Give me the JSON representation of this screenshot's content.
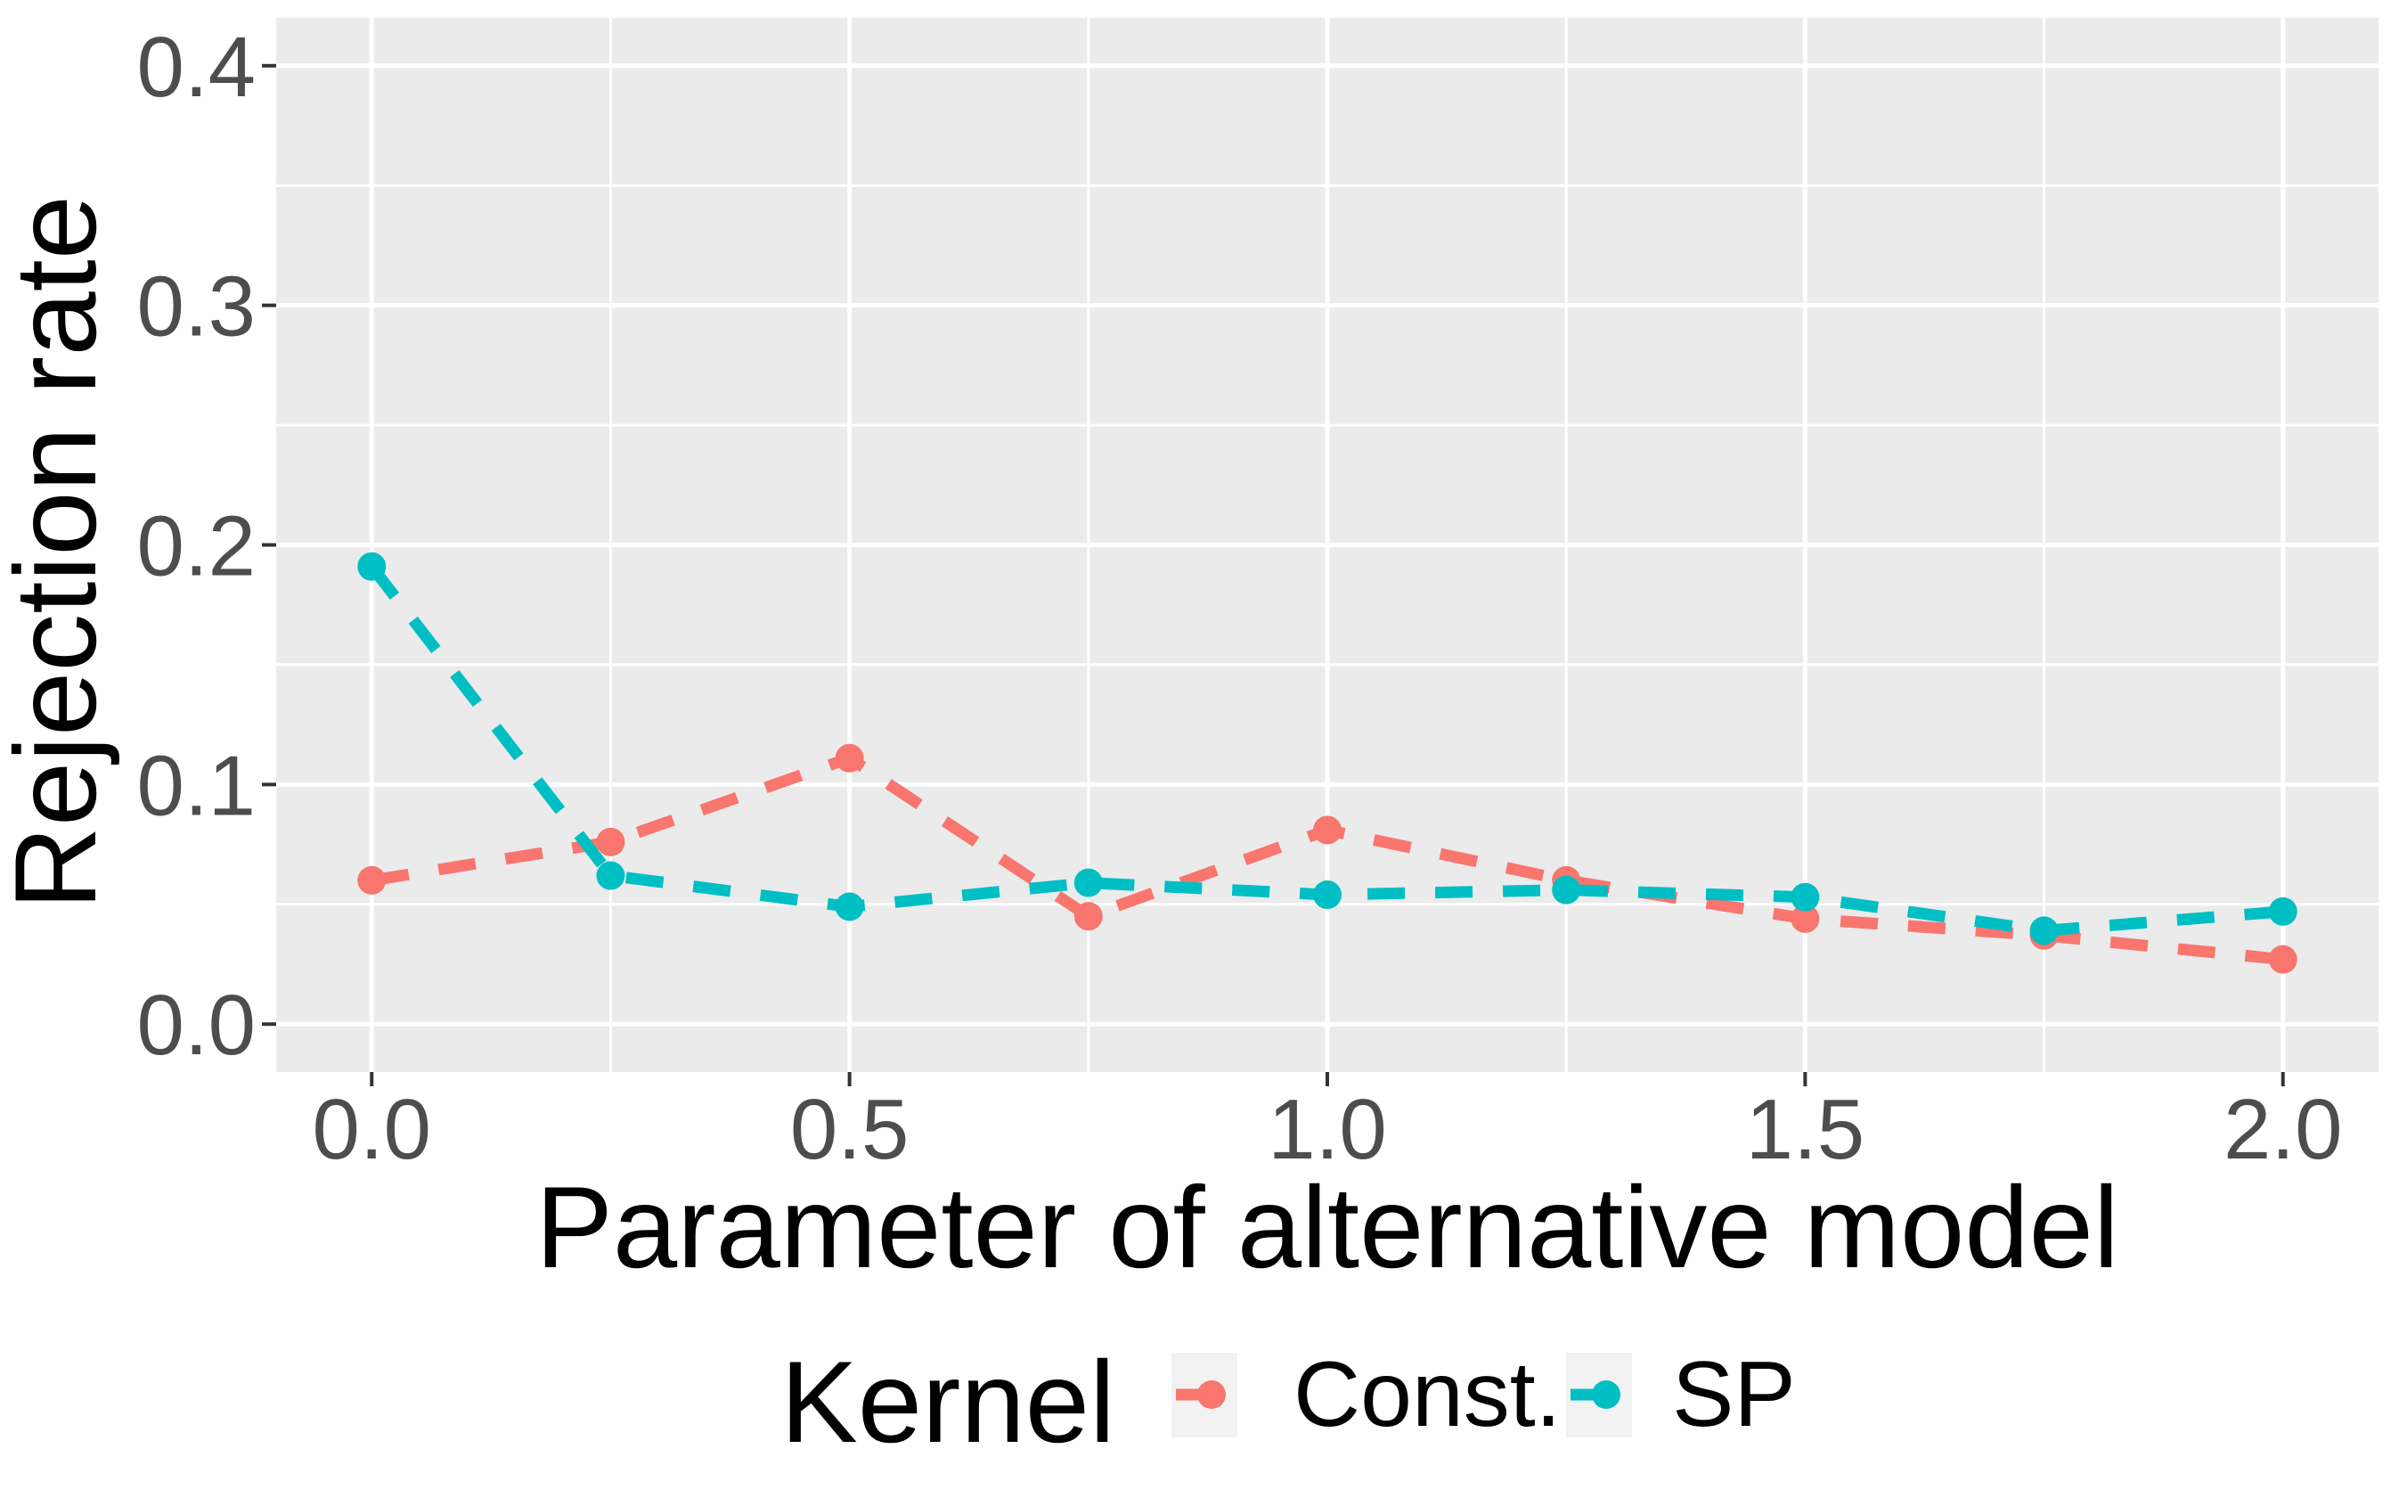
{
  "chart_data": {
    "type": "line",
    "title": "",
    "xlabel": "Parameter of alternative model",
    "ylabel": "Rejection rate",
    "x": [
      0.0,
      0.25,
      0.5,
      0.75,
      1.0,
      1.25,
      1.5,
      1.75,
      2.0
    ],
    "series": [
      {
        "name": "Const.",
        "color": "#F8766D",
        "values": [
          0.06,
          0.076,
          0.111,
          0.045,
          0.081,
          0.06,
          0.044,
          0.037,
          0.027
        ]
      },
      {
        "name": "SP",
        "color": "#00BFC4",
        "values": [
          0.191,
          0.062,
          0.049,
          0.059,
          0.054,
          0.056,
          0.053,
          0.039,
          0.047
        ]
      }
    ],
    "x_ticks": [
      "0.0",
      "0.5",
      "1.0",
      "1.5",
      "2.0"
    ],
    "x_tick_values": [
      0.0,
      0.5,
      1.0,
      1.5,
      2.0
    ],
    "x_minor_values": [
      0.25,
      0.75,
      1.25,
      1.75
    ],
    "y_ticks": [
      "0.0",
      "0.1",
      "0.2",
      "0.3",
      "0.4"
    ],
    "y_tick_values": [
      0.0,
      0.1,
      0.2,
      0.3,
      0.4
    ],
    "y_minor_values": [
      0.05,
      0.15,
      0.25,
      0.35
    ],
    "xlim": [
      -0.1,
      2.1
    ],
    "ylim": [
      -0.02,
      0.42
    ],
    "grid": "major-and-minor, white on gray panel",
    "line_style": "dashed",
    "marker": "circle",
    "legend_title": "Kernel",
    "legend_position": "bottom"
  },
  "colors": {
    "background": "#FFFFFF",
    "panel_bg": "#EBEBEB",
    "grid_line": "#FFFFFF",
    "tick_mark": "#333333",
    "tick_label": "#4D4D4D",
    "axis_title": "#000000",
    "legend_key_bg": "#F2F2F2",
    "series_const": "#F8766D",
    "series_sp": "#00BFC4"
  }
}
